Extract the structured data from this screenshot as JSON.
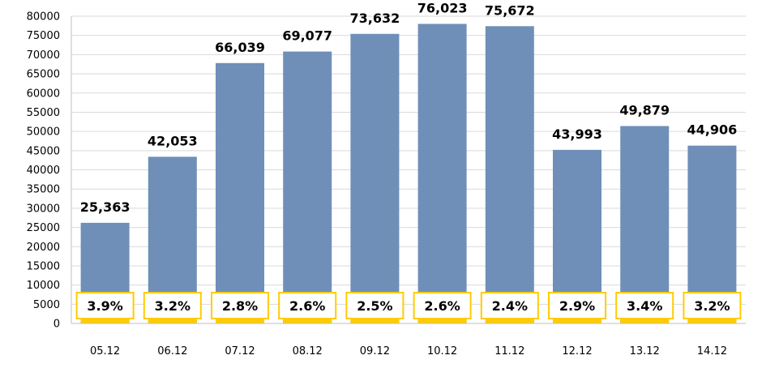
{
  "chart_data": {
    "type": "bar",
    "title": "",
    "xlabel": "",
    "ylabel": "",
    "categories": [
      "05.12",
      "06.12",
      "07.12",
      "08.12",
      "09.12",
      "10.12",
      "11.12",
      "12.12",
      "13.12",
      "14.12"
    ],
    "series": [
      {
        "values": [
          26200,
          43400,
          67800,
          70800,
          75400,
          78000,
          77400,
          45200,
          51400,
          46300
        ],
        "data_labels": [
          "25,363",
          "42,053",
          "66,039",
          "69,077",
          "73,632",
          "76,023",
          "75,672",
          "43,993",
          "49,879",
          "44,906"
        ],
        "color": "#6f8fb8"
      },
      {
        "values": [
          3.9,
          3.2,
          2.8,
          2.6,
          2.5,
          2.6,
          2.4,
          2.9,
          3.4,
          3.2
        ],
        "data_labels": [
          "3.9%",
          "3.2%",
          "2.8%",
          "2.6%",
          "2.5%",
          "2.6%",
          "2.4%",
          "2.9%",
          "3.4%",
          "3.2%"
        ],
        "color": "#ffcc00"
      }
    ],
    "ylim": [
      0,
      80000
    ],
    "yticks": [
      0,
      5000,
      10000,
      15000,
      20000,
      25000,
      30000,
      35000,
      40000,
      45000,
      50000,
      55000,
      60000,
      65000,
      70000,
      75000,
      80000
    ],
    "grid": true,
    "legend": "none",
    "colors": {
      "bar": "#6f8fb8",
      "accent": "#ffcc00",
      "label_box_fill": "#ffffff",
      "grid": "#d9d9d9",
      "axis": "#bfbfbf"
    }
  }
}
